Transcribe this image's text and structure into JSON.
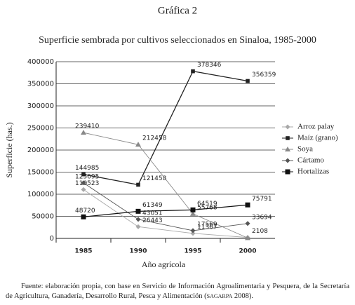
{
  "figure_label": "Gráfica 2",
  "source": {
    "before": "Fuente: elaboración propia, con base en Servicio de Información Agroalimentaria y Pesquera, de la Secretaría de Agricultura, Ganadería, Desarrollo Rural, Pesca y Alimentación (",
    "abbr": "sagarpa",
    "after": " 2008)."
  },
  "chart_data": {
    "type": "line",
    "title": "Superficie sembrada por cultivos seleccionados en Sinaloa, 1985-2000",
    "x_label": "Año agrícola",
    "y_label": "Superficie (has.)",
    "categories": [
      "1985",
      "1990",
      "1995",
      "2000"
    ],
    "ylim": [
      0,
      400000
    ],
    "yticks": [
      0,
      50000,
      100000,
      150000,
      200000,
      250000,
      300000,
      350000,
      400000
    ],
    "grid": true,
    "legend": "right",
    "series": [
      {
        "name": "Arroz palay",
        "color": "#a8a8a8",
        "marker": "diamond",
        "values": [
          110523,
          26443,
          11367,
          2108
        ]
      },
      {
        "name": "Maíz (grano)",
        "color": "#222222",
        "marker": "square",
        "values": [
          144985,
          121458,
          378346,
          356359
        ]
      },
      {
        "name": "Soya",
        "color": "#888888",
        "marker": "triangle",
        "values": [
          239410,
          212458,
          55768,
          1000
        ],
        "value_labels": [
          "239410",
          "212458",
          "55768",
          null
        ]
      },
      {
        "name": "Cártamo",
        "color": "#555555",
        "marker": "diamond",
        "values": [
          125695,
          43051,
          17569,
          33694
        ]
      },
      {
        "name": "Hortalizas",
        "color": "#111111",
        "marker": "bigsquare",
        "values": [
          48720,
          61349,
          64519,
          75791
        ]
      }
    ]
  }
}
